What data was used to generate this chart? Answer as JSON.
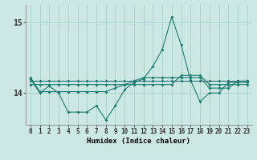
{
  "xlabel": "Humidex (Indice chaleur)",
  "bg_color": "#cce8e5",
  "grid_color": "#aacfcc",
  "line_color": "#1a7a6e",
  "ylim": [
    13.55,
    15.25
  ],
  "xlim": [
    -0.5,
    23.5
  ],
  "yticks": [
    14,
    15
  ],
  "xticks": [
    0,
    1,
    2,
    3,
    4,
    5,
    6,
    7,
    8,
    9,
    10,
    11,
    12,
    13,
    14,
    15,
    16,
    17,
    18,
    19,
    20,
    21,
    22,
    23
  ],
  "series": [
    [
      14.2,
      14.0,
      14.1,
      14.0,
      13.73,
      13.73,
      13.73,
      13.82,
      13.62,
      13.82,
      14.05,
      14.15,
      14.2,
      14.38,
      14.62,
      15.08,
      14.68,
      14.18,
      13.88,
      14.0,
      14.0,
      14.15,
      14.15,
      14.15
    ],
    [
      14.12,
      14.12,
      14.12,
      14.12,
      14.12,
      14.12,
      14.12,
      14.12,
      14.12,
      14.12,
      14.12,
      14.12,
      14.12,
      14.12,
      14.12,
      14.12,
      14.25,
      14.25,
      14.25,
      14.12,
      14.12,
      14.12,
      14.12,
      14.12
    ],
    [
      14.17,
      14.17,
      14.17,
      14.17,
      14.17,
      14.17,
      14.17,
      14.17,
      14.17,
      14.17,
      14.17,
      14.17,
      14.17,
      14.17,
      14.17,
      14.17,
      14.17,
      14.17,
      14.17,
      14.17,
      14.17,
      14.17,
      14.17,
      14.17
    ],
    [
      14.22,
      14.02,
      14.02,
      14.02,
      14.02,
      14.02,
      14.02,
      14.02,
      14.02,
      14.07,
      14.12,
      14.17,
      14.22,
      14.22,
      14.22,
      14.22,
      14.22,
      14.22,
      14.22,
      14.07,
      14.07,
      14.07,
      14.17,
      14.17
    ]
  ]
}
